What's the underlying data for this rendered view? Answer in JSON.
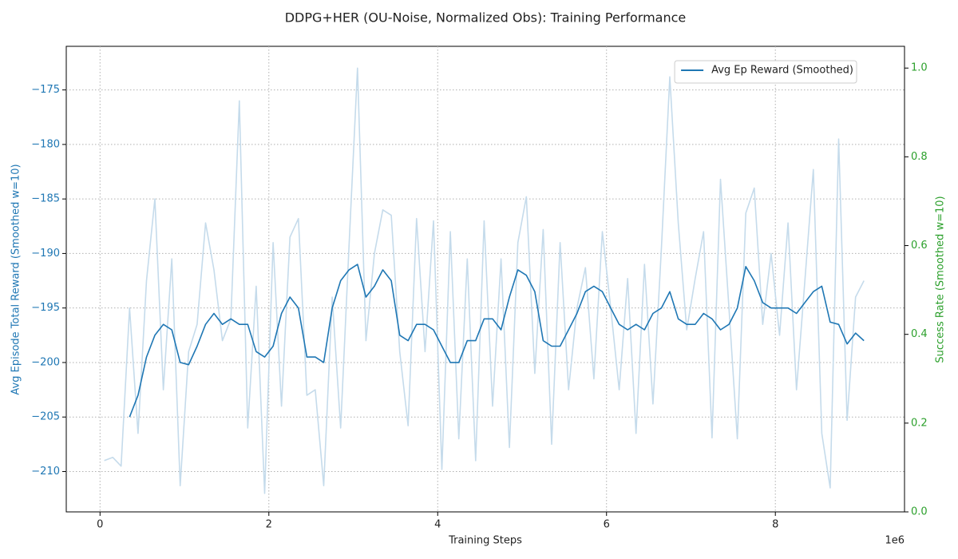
{
  "chart_data": {
    "type": "line",
    "title": "DDPG+HER (OU-Noise, Normalized Obs): Training Performance",
    "x_label": "Training Steps",
    "x_offset_text": "1e6",
    "y_label": "Avg Episode Total Reward (Smoothed w=10)",
    "y2_label": "Success Rate (Smoothed w=10)",
    "y_axis_color": "#1f77b4",
    "y2_axis_color": "#2ca02c",
    "grid": true,
    "legend": "upper right",
    "xlim": [
      -0.4,
      9.53
    ],
    "xticks": [
      0,
      2,
      4,
      6,
      8
    ],
    "ylim": [
      -213.7,
      -171.0
    ],
    "yticks": [
      {
        "value": -210,
        "label": "−210"
      },
      {
        "value": -205,
        "label": "−205"
      },
      {
        "value": -200,
        "label": "−200"
      },
      {
        "value": -195,
        "label": "−195"
      },
      {
        "value": -190,
        "label": "−190"
      },
      {
        "value": -185,
        "label": "−185"
      },
      {
        "value": -180,
        "label": "−180"
      },
      {
        "value": -175,
        "label": "−175"
      }
    ],
    "y2lim": [
      0,
      1.049
    ],
    "y2ticks": [
      {
        "value": 0,
        "label": "0.0"
      },
      0.2,
      0.4,
      0.6,
      0.8,
      {
        "value": 1,
        "label": "1.0"
      }
    ],
    "x": [
      0.05,
      0.15,
      0.25,
      0.35,
      0.45,
      0.55,
      0.65,
      0.75,
      0.85,
      0.95,
      1.05,
      1.15,
      1.25,
      1.35,
      1.45,
      1.55,
      1.65,
      1.75,
      1.85,
      1.95,
      2.05,
      2.15,
      2.25,
      2.35,
      2.45,
      2.55,
      2.65,
      2.75,
      2.85,
      2.95,
      3.05,
      3.15,
      3.25,
      3.35,
      3.45,
      3.55,
      3.65,
      3.75,
      3.85,
      3.95,
      4.05,
      4.15,
      4.25,
      4.35,
      4.45,
      4.55,
      4.65,
      4.75,
      4.85,
      4.95,
      5.05,
      5.15,
      5.25,
      5.35,
      5.45,
      5.55,
      5.65,
      5.75,
      5.85,
      5.95,
      6.05,
      6.15,
      6.25,
      6.35,
      6.45,
      6.55,
      6.65,
      6.75,
      6.85,
      6.95,
      7.05,
      7.15,
      7.25,
      7.35,
      7.45,
      7.55,
      7.65,
      7.75,
      7.85,
      7.95,
      8.05,
      8.15,
      8.25,
      8.35,
      8.45,
      8.55,
      8.65,
      8.75,
      8.85,
      8.95,
      9.05
    ],
    "series": [
      {
        "color": "#c5dbeb",
        "values": [
          -209,
          -208.7,
          -209.5,
          -195,
          -206.5,
          -192.5,
          -185,
          -202.5,
          -190.5,
          -211.3,
          -199,
          -196.5,
          -187.2,
          -191.5,
          -198,
          -196,
          -176,
          -206,
          -193,
          -212,
          -189,
          -204,
          -188.5,
          -186.8,
          -203,
          -202.5,
          -211.3,
          -194,
          -206,
          -189.3,
          -173,
          -198,
          -190,
          -186,
          -186.5,
          -199,
          -205.8,
          -186.8,
          -199,
          -187,
          -209.8,
          -188,
          -207,
          -190.5,
          -209,
          -187,
          -204,
          -190.5,
          -207.8,
          -189,
          -184.8,
          -201,
          -187.8,
          -207.5,
          -189,
          -202.5,
          -195,
          -191.3,
          -201.5,
          -188,
          -195,
          -202.5,
          -192.3,
          -206.5,
          -191,
          -203.8,
          -189.5,
          -173.8,
          -187.2,
          -197,
          -192.3,
          -188,
          -206.9,
          -183.2,
          -195,
          -207,
          -186.3,
          -184,
          -196.5,
          -190,
          -197.5,
          -187.2,
          -202.5,
          -192.5,
          -182.3,
          -206.5,
          -211.5,
          -179.5,
          -205.3,
          -194,
          -192.5
        ]
      },
      {
        "name": "Avg Ep Reward (Smoothed)",
        "color": "#1f77b4",
        "values": [
          null,
          null,
          null,
          -205,
          -203,
          -199.5,
          -197.5,
          -196.5,
          -197,
          -200,
          -200.2,
          -198.5,
          -196.5,
          -195.5,
          -196.5,
          -196,
          -196.5,
          -196.5,
          -199,
          -199.5,
          -198.5,
          -195.5,
          -194,
          -195,
          -199.5,
          -199.5,
          -200,
          -195,
          -192.5,
          -191.5,
          -191,
          -194,
          -193,
          -191.5,
          -192.5,
          -197.5,
          -198,
          -196.5,
          -196.5,
          -197,
          -198.5,
          -200,
          -200,
          -198,
          -198,
          -196,
          -196,
          -197,
          -194,
          -191.5,
          -192,
          -193.5,
          -198,
          -198.5,
          -198.5,
          -197,
          -195.5,
          -193.5,
          -193,
          -193.5,
          -195,
          -196.5,
          -197,
          -196.5,
          -197,
          -195.5,
          -195,
          -193.5,
          -196,
          -196.5,
          -196.5,
          -195.5,
          -196,
          -197,
          -196.5,
          -195,
          -191.2,
          -192.5,
          -194.5,
          -195,
          -195,
          -195,
          -195.5,
          -194.5,
          -193.5,
          -193,
          -196.3,
          -196.5,
          -198.3,
          -197.3,
          -198
        ]
      }
    ]
  }
}
